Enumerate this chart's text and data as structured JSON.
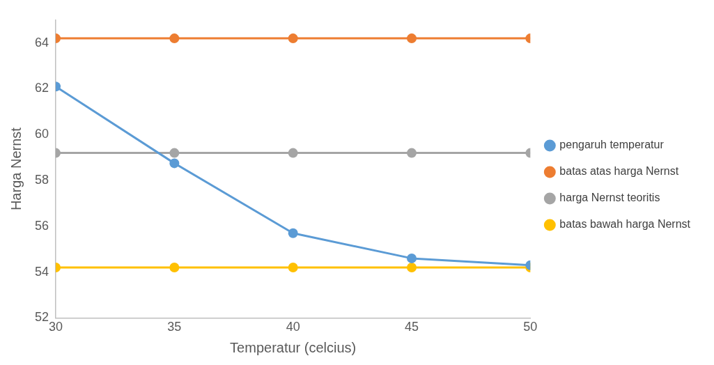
{
  "chart_data": {
    "type": "line",
    "xlabel": "Temperatur (celcius)",
    "ylabel": "Harga Nernst",
    "x": [
      30,
      35,
      40,
      45,
      50
    ],
    "series": [
      {
        "name": "pengaruh temperatur",
        "color": "#5b9bd5",
        "values": [
          62.1,
          58.75,
          55.7,
          54.6,
          54.3
        ]
      },
      {
        "name": "batas atas harga Nernst",
        "color": "#ed7d31",
        "values": [
          64.2,
          64.2,
          64.2,
          64.2,
          64.2
        ]
      },
      {
        "name": "harga Nernst teoritis",
        "color": "#a5a5a5",
        "values": [
          59.2,
          59.2,
          59.2,
          59.2,
          59.2
        ]
      },
      {
        "name": "batas bawah harga Nernst",
        "color": "#ffc000",
        "values": [
          54.2,
          54.2,
          54.2,
          54.2,
          54.2
        ]
      }
    ],
    "xlim": [
      30,
      50
    ],
    "xticks": [
      30,
      35,
      40,
      45,
      50
    ],
    "ylim": [
      52,
      65
    ],
    "yticks": [
      52,
      54,
      56,
      58,
      60,
      62,
      64
    ],
    "grid": false,
    "legend": "right",
    "marker": "circle",
    "line_style": "solid"
  }
}
